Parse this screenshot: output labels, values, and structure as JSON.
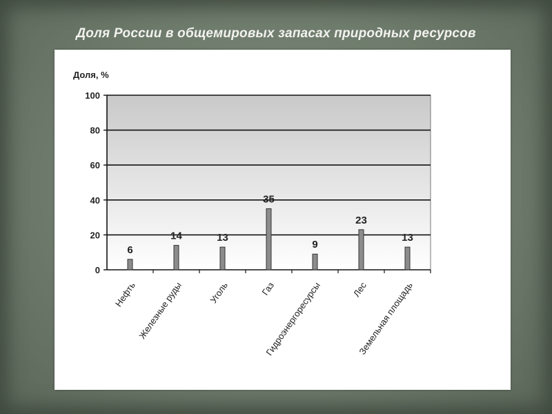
{
  "slide": {
    "title": "Доля России в общемировых запасах природных ресурсов"
  },
  "chart_data": {
    "type": "bar",
    "ylabel": "Доля, %",
    "ylim": [
      0,
      100
    ],
    "yticks": [
      0,
      20,
      40,
      60,
      80,
      100
    ],
    "grid": true,
    "categories": [
      "Нефть",
      "Железные руды",
      "Уголь",
      "Газ",
      "Гидроэнергоресурсы",
      "Лес",
      "Земельная площадь"
    ],
    "values": [
      6,
      14,
      13,
      35,
      9,
      23,
      13
    ],
    "colors": {
      "bar": "#8c8c8c",
      "bar_edge": "#333333",
      "plot_top": "#c9c9c9",
      "plot_bottom": "#ffffff"
    }
  }
}
